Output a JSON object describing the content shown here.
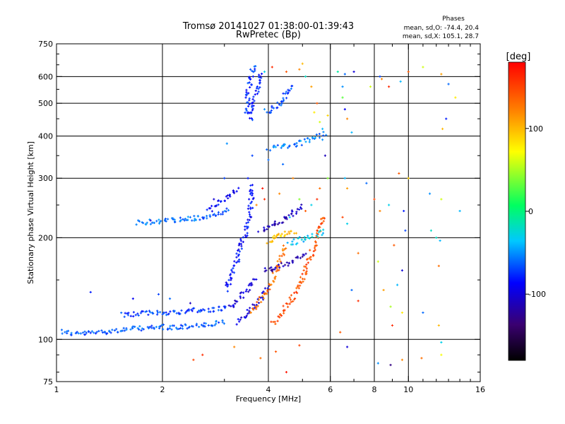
{
  "chart_data": {
    "type": "scatter",
    "title": "Tromsø 20141027 01:38:00-01:39:43",
    "subtitle": "RwPretec (Bp)",
    "xlabel": "Frequency [MHz]",
    "ylabel": "Stationary phase Virtual Height [km]",
    "x_scale": "log",
    "y_scale": "log",
    "xlim": [
      1,
      16
    ],
    "ylim": [
      75,
      750
    ],
    "x_ticks": [
      1,
      2,
      4,
      6,
      8,
      10,
      16
    ],
    "y_ticks": [
      75,
      100,
      200,
      300,
      400,
      500,
      600,
      750
    ],
    "x_grid": [
      2,
      4,
      6,
      8,
      10
    ],
    "y_grid": [
      100,
      200,
      300,
      400,
      500,
      600
    ],
    "grid": true,
    "legend": {
      "title": "Phases",
      "entries": [
        "mean, sd,O: -74.4, 20.4",
        "mean, sd,X: 105.1, 28.7"
      ],
      "placement": "top-right"
    },
    "colorbar": {
      "label": "[deg]",
      "range": [
        -180,
        180
      ],
      "ticks": [
        100,
        0,
        -100
      ],
      "placement": "right"
    },
    "traces": [
      {
        "phase": -65,
        "points": [
          [
            1.03,
            106
          ],
          [
            1.1,
            104
          ],
          [
            1.2,
            104
          ],
          [
            1.3,
            105
          ],
          [
            1.45,
            106
          ],
          [
            1.6,
            107
          ],
          [
            1.75,
            108
          ],
          [
            1.9,
            108
          ],
          [
            2.0,
            109
          ],
          [
            2.1,
            108
          ],
          [
            2.3,
            109
          ],
          [
            2.5,
            110
          ],
          [
            2.7,
            110
          ],
          [
            2.9,
            112
          ],
          [
            3.0,
            113
          ]
        ]
      },
      {
        "phase": -70,
        "points": [
          [
            1.55,
            118
          ],
          [
            1.7,
            119
          ],
          [
            1.9,
            120
          ],
          [
            2.1,
            120
          ],
          [
            2.3,
            121
          ],
          [
            2.5,
            122
          ],
          [
            2.7,
            122
          ],
          [
            2.9,
            123
          ],
          [
            3.05,
            125
          ]
        ]
      },
      {
        "phase": -60,
        "points": [
          [
            1.7,
            222
          ],
          [
            1.9,
            223
          ],
          [
            2.1,
            225
          ],
          [
            2.3,
            226
          ],
          [
            2.5,
            228
          ],
          [
            2.7,
            230
          ],
          [
            2.9,
            236
          ],
          [
            3.1,
            244
          ]
        ]
      },
      {
        "phase": -85,
        "points": [
          [
            3.05,
            140
          ],
          [
            3.12,
            150
          ],
          [
            3.18,
            160
          ],
          [
            3.25,
            170
          ],
          [
            3.3,
            180
          ],
          [
            3.35,
            190
          ],
          [
            3.4,
            200
          ],
          [
            3.45,
            210
          ],
          [
            3.5,
            225
          ],
          [
            3.55,
            240
          ],
          [
            3.58,
            260
          ],
          [
            3.6,
            290
          ]
        ]
      },
      {
        "phase": -95,
        "points": [
          [
            3.25,
            112
          ],
          [
            3.35,
            115
          ],
          [
            3.45,
            118
          ],
          [
            3.55,
            122
          ],
          [
            3.65,
            126
          ],
          [
            3.75,
            130
          ],
          [
            3.85,
            135
          ],
          [
            3.95,
            140
          ],
          [
            4.05,
            146
          ]
        ]
      },
      {
        "phase": -100,
        "points": [
          [
            3.1,
            125
          ],
          [
            3.2,
            128
          ],
          [
            3.3,
            132
          ],
          [
            3.4,
            136
          ],
          [
            3.5,
            140
          ],
          [
            3.6,
            146
          ],
          [
            3.7,
            152
          ]
        ]
      },
      {
        "phase": -75,
        "points": [
          [
            3.45,
            460
          ],
          [
            3.48,
            490
          ],
          [
            3.5,
            520
          ],
          [
            3.52,
            550
          ],
          [
            3.55,
            580
          ],
          [
            3.58,
            610
          ],
          [
            3.62,
            630
          ],
          [
            3.68,
            640
          ]
        ]
      },
      {
        "phase": -80,
        "points": [
          [
            3.55,
            450
          ],
          [
            3.6,
            480
          ],
          [
            3.65,
            510
          ],
          [
            3.7,
            540
          ],
          [
            3.75,
            570
          ],
          [
            3.78,
            600
          ],
          [
            3.8,
            620
          ]
        ]
      },
      {
        "phase": -70,
        "points": [
          [
            4.0,
            470
          ],
          [
            4.1,
            480
          ],
          [
            4.2,
            490
          ],
          [
            4.3,
            500
          ],
          [
            4.4,
            510
          ],
          [
            4.5,
            530
          ],
          [
            4.6,
            550
          ],
          [
            4.7,
            560
          ]
        ]
      },
      {
        "phase": -55,
        "points": [
          [
            4.0,
            368
          ],
          [
            4.2,
            370
          ],
          [
            4.4,
            372
          ],
          [
            4.6,
            374
          ],
          [
            4.8,
            378
          ],
          [
            5.0,
            384
          ],
          [
            5.2,
            390
          ],
          [
            5.5,
            400
          ],
          [
            5.8,
            410
          ]
        ]
      },
      {
        "phase": 130,
        "points": [
          [
            3.6,
            120
          ],
          [
            3.7,
            125
          ],
          [
            3.8,
            130
          ],
          [
            3.9,
            136
          ],
          [
            4.0,
            142
          ],
          [
            4.1,
            150
          ],
          [
            4.2,
            158
          ],
          [
            4.3,
            168
          ],
          [
            4.4,
            178
          ],
          [
            4.5,
            190
          ]
        ]
      },
      {
        "phase": 145,
        "points": [
          [
            4.1,
            112
          ],
          [
            4.25,
            116
          ],
          [
            4.4,
            121
          ],
          [
            4.55,
            127
          ],
          [
            4.7,
            134
          ],
          [
            4.85,
            142
          ],
          [
            5.0,
            152
          ],
          [
            5.15,
            164
          ],
          [
            5.3,
            178
          ],
          [
            5.45,
            194
          ],
          [
            5.6,
            212
          ],
          [
            5.75,
            234
          ]
        ]
      },
      {
        "phase": 95,
        "points": [
          [
            4.0,
            195
          ],
          [
            4.1,
            198
          ],
          [
            4.2,
            200
          ],
          [
            4.3,
            203
          ],
          [
            4.4,
            205
          ],
          [
            4.6,
            208
          ],
          [
            4.8,
            210
          ]
        ]
      },
      {
        "phase": -35,
        "points": [
          [
            4.6,
            190
          ],
          [
            4.8,
            195
          ],
          [
            5.0,
            198
          ],
          [
            5.2,
            200
          ],
          [
            5.4,
            203
          ],
          [
            5.6,
            206
          ],
          [
            5.8,
            210
          ]
        ]
      },
      {
        "phase": -110,
        "points": [
          [
            3.8,
            210
          ],
          [
            4.0,
            215
          ],
          [
            4.2,
            220
          ],
          [
            4.4,
            225
          ],
          [
            4.6,
            232
          ],
          [
            4.8,
            240
          ],
          [
            5.0,
            250
          ]
        ]
      },
      {
        "phase": -115,
        "points": [
          [
            3.9,
            160
          ],
          [
            4.1,
            162
          ],
          [
            4.3,
            165
          ],
          [
            4.5,
            168
          ],
          [
            4.7,
            171
          ],
          [
            4.9,
            175
          ],
          [
            5.1,
            180
          ]
        ]
      },
      {
        "phase": -90,
        "points": [
          [
            2.7,
            240
          ],
          [
            2.9,
            255
          ],
          [
            3.1,
            270
          ],
          [
            3.3,
            280
          ]
        ]
      }
    ],
    "scatter": [
      [
        1.25,
        138,
        -80
      ],
      [
        1.65,
        132,
        -90
      ],
      [
        1.95,
        136,
        -70
      ],
      [
        2.1,
        132,
        -60
      ],
      [
        2.4,
        128,
        -110
      ],
      [
        2.6,
        90,
        160
      ],
      [
        2.45,
        87,
        150
      ],
      [
        3.2,
        95,
        120
      ],
      [
        3.8,
        88,
        130
      ],
      [
        4.2,
        92,
        140
      ],
      [
        4.5,
        80,
        170
      ],
      [
        4.9,
        96,
        150
      ],
      [
        4.1,
        640,
        160
      ],
      [
        4.5,
        620,
        140
      ],
      [
        4.9,
        630,
        120
      ],
      [
        5.0,
        655,
        100
      ],
      [
        5.1,
        600,
        -20
      ],
      [
        5.3,
        560,
        110
      ],
      [
        5.5,
        500,
        140
      ],
      [
        5.6,
        440,
        60
      ],
      [
        5.7,
        420,
        -40
      ],
      [
        5.9,
        460,
        90
      ],
      [
        6.3,
        620,
        -10
      ],
      [
        6.6,
        610,
        -60
      ],
      [
        7.0,
        620,
        -100
      ],
      [
        6.5,
        560,
        -50
      ],
      [
        6.5,
        520,
        30
      ],
      [
        6.6,
        480,
        -90
      ],
      [
        6.7,
        450,
        120
      ],
      [
        6.9,
        410,
        -40
      ],
      [
        7.8,
        560,
        60
      ],
      [
        8.3,
        600,
        -70
      ],
      [
        8.4,
        590,
        120
      ],
      [
        8.8,
        560,
        160
      ],
      [
        9.5,
        580,
        -40
      ],
      [
        10.0,
        620,
        140
      ],
      [
        11.0,
        640,
        60
      ],
      [
        12.4,
        610,
        110
      ],
      [
        13.0,
        570,
        -60
      ],
      [
        13.6,
        520,
        80
      ],
      [
        12.8,
        450,
        -80
      ],
      [
        12.5,
        420,
        100
      ],
      [
        6.6,
        300,
        -40
      ],
      [
        6.7,
        280,
        110
      ],
      [
        7.6,
        290,
        -60
      ],
      [
        8.0,
        260,
        150
      ],
      [
        8.3,
        240,
        120
      ],
      [
        8.8,
        250,
        -30
      ],
      [
        9.7,
        240,
        -80
      ],
      [
        9.4,
        310,
        140
      ],
      [
        10.0,
        300,
        90
      ],
      [
        11.5,
        270,
        -50
      ],
      [
        12.4,
        260,
        60
      ],
      [
        14.0,
        240,
        -40
      ],
      [
        12.0,
        200,
        -20
      ],
      [
        6.5,
        230,
        150
      ],
      [
        6.7,
        220,
        -30
      ],
      [
        7.2,
        180,
        130
      ],
      [
        8.2,
        170,
        60
      ],
      [
        9.1,
        190,
        140
      ],
      [
        9.6,
        160,
        -100
      ],
      [
        9.8,
        210,
        -70
      ],
      [
        11.6,
        210,
        -20
      ],
      [
        12.3,
        196,
        -40
      ],
      [
        12.2,
        165,
        130
      ],
      [
        6.9,
        140,
        -60
      ],
      [
        7.2,
        130,
        160
      ],
      [
        8.5,
        140,
        110
      ],
      [
        8.9,
        125,
        50
      ],
      [
        9.3,
        145,
        -40
      ],
      [
        9.0,
        110,
        160
      ],
      [
        9.6,
        120,
        80
      ],
      [
        11.0,
        120,
        -60
      ],
      [
        12.2,
        110,
        100
      ],
      [
        12.4,
        98,
        -30
      ],
      [
        6.4,
        105,
        140
      ],
      [
        6.7,
        95,
        -100
      ],
      [
        8.2,
        85,
        -50
      ],
      [
        8.9,
        84,
        -130
      ],
      [
        9.6,
        87,
        120
      ],
      [
        10.9,
        88,
        130
      ],
      [
        12.4,
        90,
        70
      ],
      [
        5.4,
        470,
        80
      ],
      [
        5.7,
        390,
        -50
      ],
      [
        5.8,
        350,
        -110
      ],
      [
        5.9,
        300,
        40
      ],
      [
        5.6,
        280,
        130
      ],
      [
        5.5,
        260,
        160
      ],
      [
        5.3,
        250,
        -30
      ],
      [
        4.9,
        260,
        40
      ],
      [
        4.7,
        300,
        120
      ],
      [
        4.4,
        330,
        -60
      ],
      [
        4.0,
        340,
        -60
      ],
      [
        4.3,
        270,
        120
      ],
      [
        4.6,
        230,
        -40
      ],
      [
        5.1,
        240,
        140
      ],
      [
        3.05,
        380,
        -50
      ],
      [
        2.8,
        260,
        -100
      ],
      [
        3.0,
        300,
        -70
      ],
      [
        3.5,
        300,
        -80
      ],
      [
        3.7,
        250,
        120
      ],
      [
        3.9,
        260,
        160
      ],
      [
        3.85,
        280,
        170
      ],
      [
        3.3,
        190,
        -100
      ],
      [
        3.6,
        350,
        -70
      ],
      [
        2.4,
        230,
        -60
      ],
      [
        1.85,
        225,
        -100
      ],
      [
        3.9,
        480,
        -50
      ],
      [
        3.8,
        600,
        -110
      ],
      [
        3.9,
        620,
        -30
      ]
    ]
  }
}
